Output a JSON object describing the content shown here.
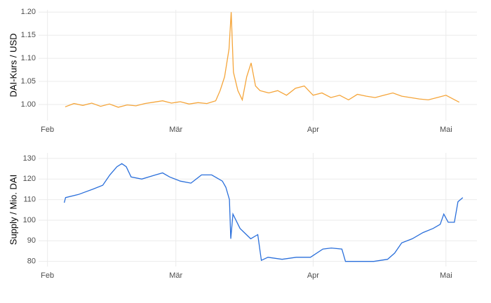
{
  "chart_data": [
    {
      "type": "line",
      "y_label": "DAI-Kurs / USD",
      "x": [
        4,
        6,
        8,
        10,
        12,
        14,
        16,
        18,
        20,
        22,
        24,
        26,
        28,
        30,
        32,
        34,
        36,
        38,
        39,
        40,
        41,
        41.5,
        42,
        43,
        44,
        45,
        46,
        47,
        48,
        50,
        52,
        54,
        56,
        58,
        60,
        62,
        64,
        66,
        68,
        70,
        72,
        74,
        76,
        78,
        80,
        82,
        84,
        86,
        88,
        90,
        92,
        93
      ],
      "series": [
        {
          "name": "DAI-Kurs",
          "color": "#f5a53a",
          "values": [
            0.995,
            1.002,
            0.998,
            1.003,
            0.996,
            1.001,
            0.994,
            0.999,
            0.997,
            1.002,
            1.005,
            1.008,
            1.003,
            1.006,
            1.001,
            1.004,
            1.002,
            1.008,
            1.03,
            1.06,
            1.12,
            1.2,
            1.07,
            1.03,
            1.01,
            1.06,
            1.09,
            1.04,
            1.03,
            1.025,
            1.03,
            1.02,
            1.035,
            1.04,
            1.02,
            1.025,
            1.015,
            1.02,
            1.01,
            1.022,
            1.018,
            1.015,
            1.02,
            1.025,
            1.018,
            1.015,
            1.012,
            1.01,
            1.015,
            1.02,
            1.01,
            1.005
          ]
        }
      ],
      "xlim": [
        -2,
        97
      ],
      "xticks": [
        {
          "value": 0,
          "label": "Feb"
        },
        {
          "value": 29,
          "label": "Mär"
        },
        {
          "value": 60,
          "label": "Apr"
        },
        {
          "value": 90,
          "label": "Mai"
        }
      ],
      "ylim": [
        0.965,
        1.205
      ],
      "yticks": [
        {
          "value": 1,
          "label": "1.00"
        },
        1.05,
        {
          "value": 1.1,
          "label": "1.10"
        },
        1.15,
        {
          "value": 1.2,
          "label": "1.20"
        }
      ],
      "grid": true
    },
    {
      "type": "line",
      "y_label": "Supply / Mio. DAI",
      "x": [
        3.8,
        4.1,
        7.0,
        10.2,
        12.5,
        14.1,
        15.7,
        16.8,
        17.8,
        18.9,
        21.3,
        24.4,
        26.0,
        27.6,
        30.0,
        32.4,
        34.8,
        37.1,
        39.5,
        40.3,
        41.1,
        41.4,
        41.9,
        43.5,
        45.9,
        47.5,
        48.3,
        49.8,
        53.0,
        56.2,
        59.4,
        62.2,
        64.1,
        66.5,
        67.3,
        70.5,
        73.7,
        76.8,
        78.4,
        80.0,
        82.4,
        84.8,
        87.1,
        88.7,
        89.5,
        90.5,
        91.9,
        92.7,
        93.8
      ],
      "series": [
        {
          "name": "Supply",
          "color": "#2a6fdb",
          "values": [
            108.5,
            111,
            112.5,
            115,
            117,
            122,
            126,
            127.5,
            126,
            121,
            120,
            122,
            123,
            121,
            119,
            118,
            122,
            122,
            119,
            116,
            110,
            91,
            103,
            96,
            91,
            93,
            80.5,
            82,
            81,
            82,
            82,
            86,
            86.5,
            86,
            80,
            80,
            80,
            81,
            84,
            89,
            91,
            94,
            96,
            98,
            103,
            99,
            99,
            109,
            111
          ]
        }
      ],
      "xlim": [
        -2,
        97
      ],
      "xticks": [
        {
          "value": 0,
          "label": "Feb"
        },
        {
          "value": 29,
          "label": "Mär"
        },
        {
          "value": 60,
          "label": "Apr"
        },
        {
          "value": 90,
          "label": "Mai"
        }
      ],
      "ylim": [
        77.5,
        132.7
      ],
      "yticks": [
        80,
        90,
        100,
        110,
        120,
        130
      ],
      "grid": true
    }
  ]
}
